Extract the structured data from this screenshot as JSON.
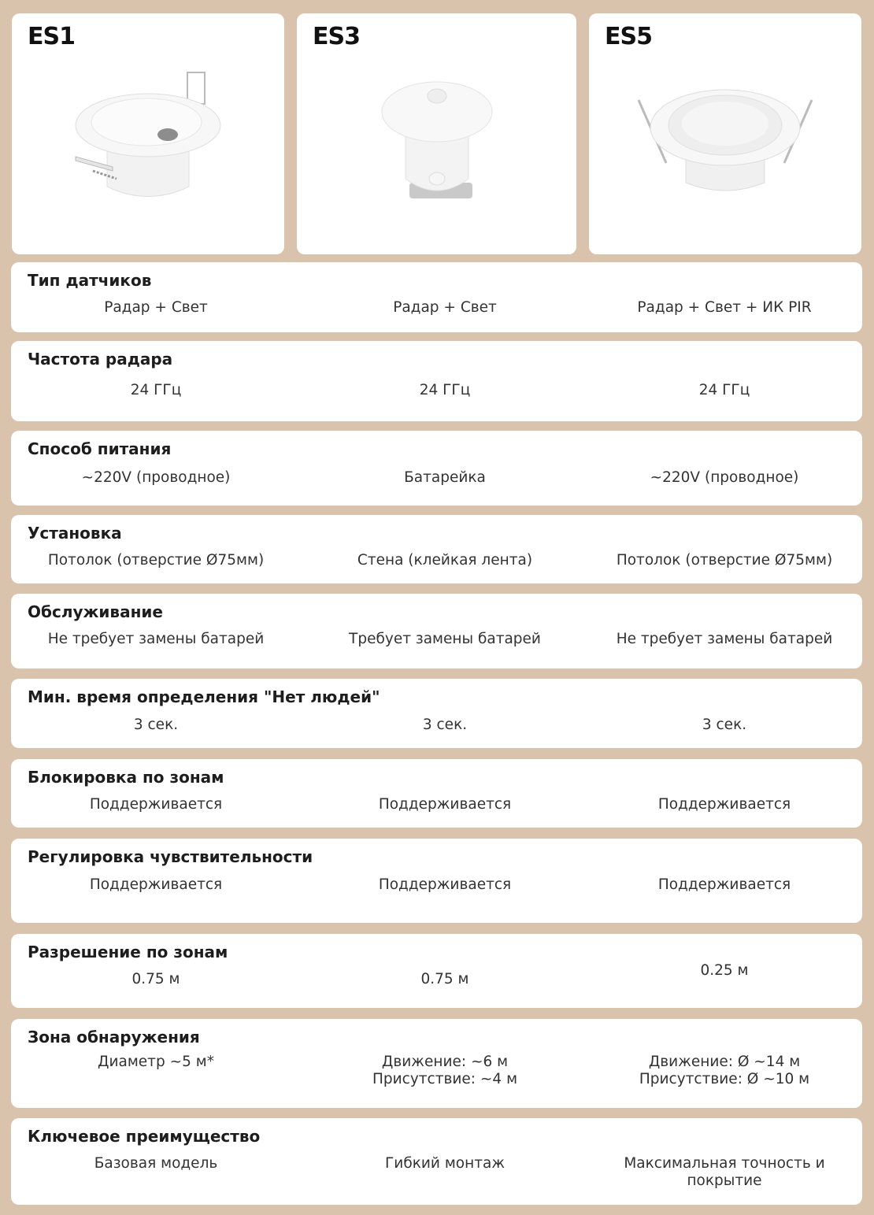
{
  "products": [
    {
      "name": "ES1"
    },
    {
      "name": "ES3"
    },
    {
      "name": "ES5"
    }
  ],
  "rows": [
    {
      "title": "Тип датчиков",
      "values": [
        "Радар + Свет",
        "Радар + Свет",
        "Радар + Свет + ИК PIR"
      ]
    },
    {
      "title": "Частота радара",
      "values": [
        "24 ГГц",
        "24 ГГц",
        "24 ГГц"
      ]
    },
    {
      "title": "Способ питания",
      "values": [
        "~220V (проводное)",
        "Батарейка",
        "~220V (проводное)"
      ]
    },
    {
      "title": "Установка",
      "values": [
        "Потолок (отверстие Ø75мм)",
        "Стена (клейкая лента)",
        "Потолок (отверстие Ø75мм)"
      ]
    },
    {
      "title": "Обслуживание",
      "values": [
        "Не требует замены батарей",
        "Требует замены батарей",
        "Не требует замены батарей"
      ]
    },
    {
      "title": "Мин. время определения \"Нет людей\"",
      "values": [
        "3 сек.",
        "3 сек.",
        "3 сек."
      ]
    },
    {
      "title": "Блокировка по зонам",
      "values": [
        "Поддерживается",
        "Поддерживается",
        "Поддерживается"
      ]
    },
    {
      "title": "Регулировка чувствительности",
      "values": [
        "Поддерживается",
        "Поддерживается",
        "Поддерживается"
      ]
    },
    {
      "title": "Разрешение по зонам",
      "values": [
        "0.75 м",
        "0.75 м",
        "0.25 м"
      ]
    },
    {
      "title": "Зона обнаружения",
      "values": [
        "Диаметр ~5 м*",
        "Движение: ~6 м\nПрисутствие: ~4 м",
        "Движение: Ø ~14 м\nПрисутствие: Ø ~10 м"
      ]
    },
    {
      "title": "Ключевое преимущество",
      "values": [
        "Базовая модель",
        "Гибкий монтаж",
        "Максимальная точность и покрытие"
      ]
    }
  ],
  "colors": {
    "background": "#dac3ad",
    "card": "#ffffff"
  }
}
